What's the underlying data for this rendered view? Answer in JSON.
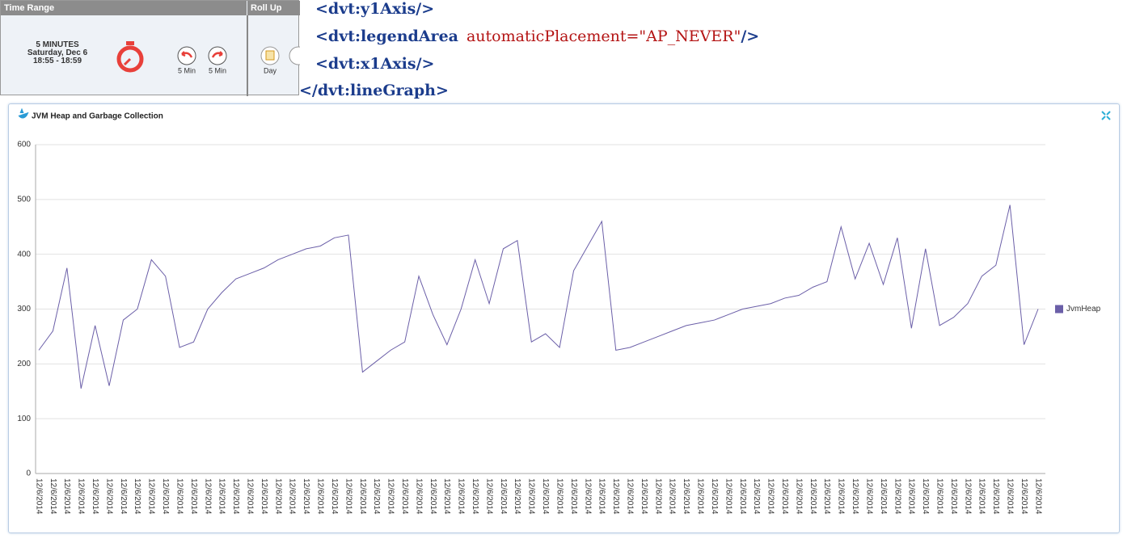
{
  "toolbar": {
    "headers": [
      "Time Range",
      "Roll Up"
    ],
    "time_range": {
      "label": "5 MINUTES",
      "date": "Saturday, Dec 6",
      "time": "18:55 - 18:59"
    },
    "buttons": [
      "5 Min",
      "5 Min"
    ],
    "rollup": [
      "Day"
    ]
  },
  "code": {
    "lines": [
      [
        "<dvt:y1Axis/>"
      ],
      [
        "<dvt:legendArea",
        "automaticPlacement=\"AP_NEVER\"",
        "/>"
      ],
      [
        "<dvt:x1Axis/>"
      ],
      [
        "</dvt:lineGraph>"
      ]
    ]
  },
  "chart_data": {
    "type": "line",
    "title": "JVM Heap and Garbage Collection",
    "categories": [
      "12/6/2014",
      "12/6/2014",
      "12/6/2014",
      "12/6/2014",
      "12/6/2014",
      "12/6/2014",
      "12/6/2014",
      "12/6/2014",
      "12/6/2014",
      "12/6/2014",
      "12/6/2014",
      "12/6/2014",
      "12/6/2014",
      "12/6/2014",
      "12/6/2014",
      "12/6/2014",
      "12/6/2014",
      "12/6/2014",
      "12/6/2014",
      "12/6/2014",
      "12/6/2014",
      "12/6/2014",
      "12/6/2014",
      "12/6/2014",
      "12/6/2014",
      "12/6/2014",
      "12/6/2014",
      "12/6/2014",
      "12/6/2014",
      "12/6/2014",
      "12/6/2014",
      "12/6/2014",
      "12/6/2014",
      "12/6/2014",
      "12/6/2014",
      "12/6/2014",
      "12/6/2014",
      "12/6/2014",
      "12/6/2014",
      "12/6/2014",
      "12/6/2014",
      "12/6/2014",
      "12/6/2014",
      "12/6/2014",
      "12/6/2014",
      "12/6/2014",
      "12/6/2014",
      "12/6/2014",
      "12/6/2014",
      "12/6/2014",
      "12/6/2014",
      "12/6/2014",
      "12/6/2014",
      "12/6/2014",
      "12/6/2014",
      "12/6/2014",
      "12/6/2014",
      "12/6/2014",
      "12/6/2014",
      "12/6/2014",
      "12/6/2014",
      "12/6/2014",
      "12/6/2014",
      "12/6/2014",
      "12/6/2014",
      "12/6/2014",
      "12/6/2014",
      "12/6/2014",
      "12/6/2014",
      "12/6/2014",
      "12/6/2014",
      "12/6/2014"
    ],
    "series": [
      {
        "name": "JvmHeap",
        "color": "#6b5fa8",
        "values": [
          225,
          260,
          375,
          155,
          270,
          160,
          280,
          300,
          390,
          360,
          230,
          240,
          300,
          330,
          355,
          365,
          375,
          390,
          400,
          410,
          415,
          430,
          435,
          185,
          205,
          225,
          240,
          360,
          290,
          235,
          300,
          390,
          310,
          410,
          425,
          240,
          255,
          230,
          370,
          415,
          460,
          225,
          230,
          240,
          250,
          260,
          270,
          275,
          280,
          290,
          300,
          305,
          310,
          320,
          325,
          340,
          350,
          450,
          355,
          420,
          345,
          430,
          265,
          410,
          270,
          285,
          310,
          360,
          380,
          490,
          235,
          300
        ]
      }
    ],
    "ylim": [
      0,
      600
    ],
    "yticks": [
      0,
      100,
      200,
      300,
      400,
      500,
      600
    ],
    "grid": true,
    "legend": "right"
  }
}
